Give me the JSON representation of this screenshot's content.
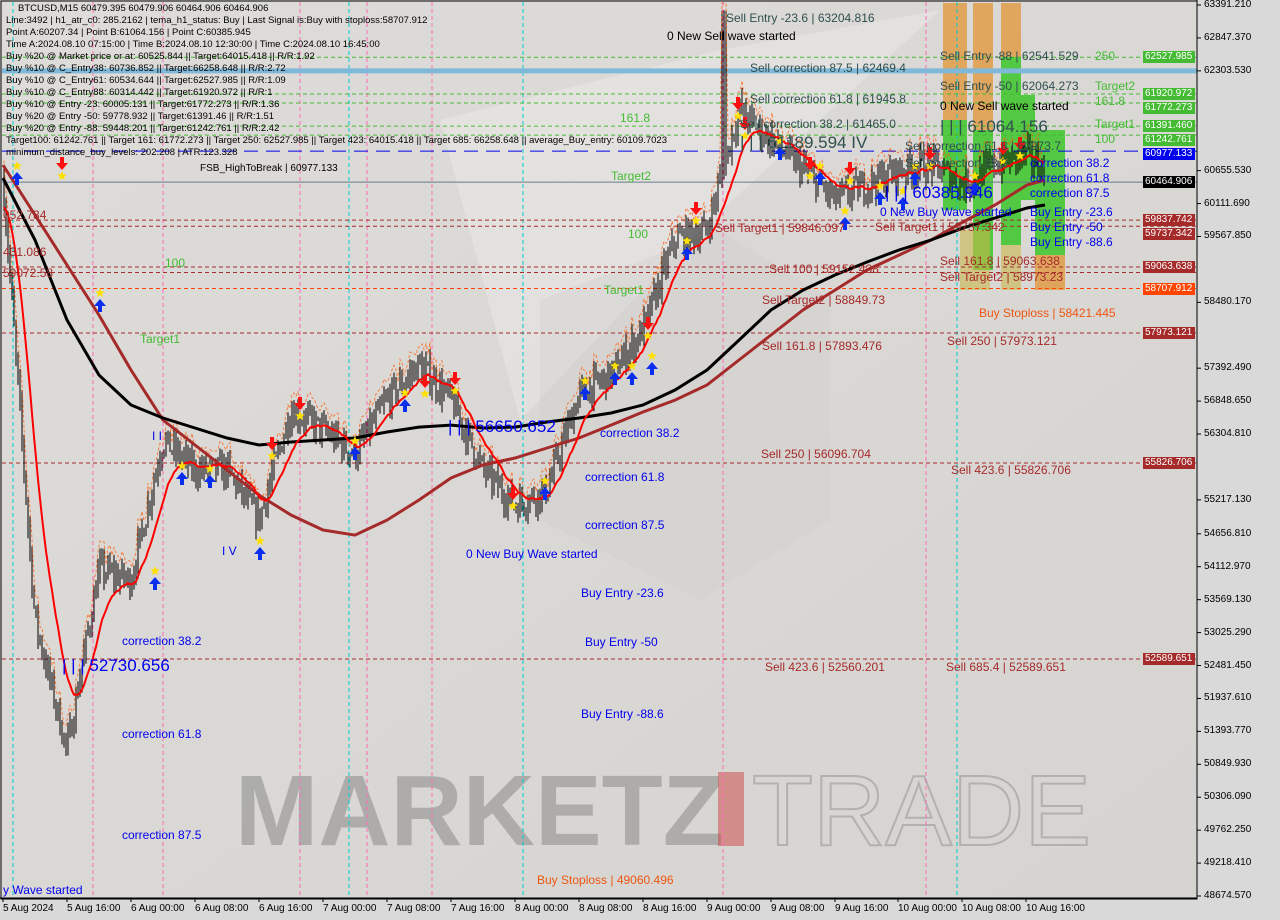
{
  "header": {
    "lines": [
      "BTCUSD,M15  60479.395 60479.906 60464.906 60464.906",
      "Line:3492 | h1_atr_c0: 285.2162 | tema_h1_status: Buy | Last Signal is:Buy with stoploss:58707.912",
      "Point A:60207.34 | Point B:61064.156 | Point C:60385.945",
      "Time A:2024.08.10 07:15:00 | Time B:2024.08.10 12:30:00 | Time C:2024.08.10 16:45:00",
      "Buy %20 @ Market price or at: 60525.844 || Target:64015.418 || R/R:1.92",
      "Buy %10 @ C_Entry38: 60736.852 || Target:66258.648 || R/R:2.72",
      "Buy %10 @ C_Entry61: 60534.644 || Target:62527.985 || R/R:1.09",
      "Buy %10 @ C_Entry88: 60314.442 || Target:61920.972 || R/R:1",
      "Buy %10 @ Entry -23: 60005.131 || Target:61772.273 || R/R:1.36",
      "Buy %20 @ Entry -50: 59778.932 || Target:61391.46 || R/R:1.51",
      "Buy %20 @ Entry -88: 59448.201 || Target:61242.761 || R/R:2.42",
      "Target100: 61242.761 || Target 161: 61772.273 || Target 250: 62527.985 || Target 423: 64015.418 || Target 685: 66258.648 || average_Buy_entry: 60109.7023",
      "minimum_distance_buy_levels: 202.208 | ATR:123.328"
    ],
    "overlay_label": "FSB_HighToBreak | 60977.133"
  },
  "watermark": {
    "left": "MARKETZ",
    "right": "TRADE"
  },
  "chart_data": {
    "type": "candlestick",
    "symbol": "BTCUSD",
    "timeframe": "M15",
    "last_ohlc": {
      "open": 60479.395,
      "high": 60479.906,
      "low": 60464.906,
      "close": 60464.906
    },
    "ylim": [
      48674.57,
      63391.21
    ],
    "y_ticks": [
      "63391.210",
      "62847.370",
      "62303.530",
      "60655.530",
      "60111.690",
      "59567.850",
      "58480.170",
      "57392.490",
      "56848.650",
      "56304.810",
      "55217.130",
      "54656.810",
      "54112.970",
      "53569.130",
      "53025.290",
      "52481.450",
      "51937.610",
      "51393.770",
      "50849.930",
      "50306.090",
      "49762.250",
      "49218.410",
      "48674.570"
    ],
    "x_ticks": [
      "5 Aug 2024",
      "5 Aug 16:00",
      "6 Aug 00:00",
      "6 Aug 08:00",
      "6 Aug 16:00",
      "7 Aug 00:00",
      "7 Aug 08:00",
      "7 Aug 16:00",
      "8 Aug 00:00",
      "8 Aug 08:00",
      "8 Aug 16:00",
      "9 Aug 00:00",
      "9 Aug 08:00",
      "9 Aug 16:00",
      "10 Aug 00:00",
      "10 Aug 08:00",
      "10 Aug 16:00"
    ],
    "close_approx": [
      60500,
      53230,
      51080,
      54060,
      53890,
      56200,
      55710,
      55710,
      54880,
      56700,
      56370,
      55960,
      56870,
      57450,
      56870,
      55710,
      55130,
      55380,
      56950,
      57280,
      58020,
      59510,
      59680,
      61660,
      61160,
      60670,
      60170,
      60420,
      60670,
      60750,
      60420,
      60750,
      60910,
      60464.906
    ],
    "ma_black": [
      60534,
      59510,
      58188,
      57279,
      56784,
      56569,
      56404,
      56239,
      56123,
      56173,
      56206,
      56239,
      56338,
      56420,
      56453,
      56404,
      56420,
      56503,
      56569,
      56652,
      56784,
      57032,
      57362,
      57857,
      58353,
      58683,
      58931,
      59146,
      59344,
      59510,
      59707,
      59873,
      60038,
      60087
    ],
    "ma_brown": [
      60748,
      59922,
      59096,
      58270,
      57362,
      56536,
      56123,
      55710,
      55297,
      54967,
      54719,
      54636,
      54884,
      55215,
      55579,
      55793,
      55909,
      56074,
      56239,
      56453,
      56669,
      56866,
      57114,
      57527,
      57940,
      58353,
      58683,
      59014,
      59261,
      59510,
      59807,
      60087,
      60418,
      60500
    ],
    "spike_high": 63300,
    "levels": [
      {
        "price": 62527.985,
        "label": "62527.985",
        "color": "#44bb33",
        "style": "dash"
      },
      {
        "price": 62303.53,
        "label": "",
        "color": "#7fb8d8",
        "style": "thick"
      },
      {
        "price": 61920.972,
        "label": "61920.972",
        "color": "#44bb33",
        "style": "dash"
      },
      {
        "price": 61772.273,
        "label": "61772.273",
        "color": "#44bb33",
        "style": "dash"
      },
      {
        "price": 61391.46,
        "label": "61391.460",
        "color": "#44bb33",
        "style": "dash"
      },
      {
        "price": 61242.761,
        "label": "61242.761",
        "color": "#44bb33",
        "style": "dash"
      },
      {
        "price": 60977.133,
        "label": "60977.133",
        "color": "#0000ee",
        "style": "longdash"
      },
      {
        "price": 60464.906,
        "label": "60464.906",
        "color": "#000000",
        "style": "solid"
      },
      {
        "price": 59837.742,
        "label": "59837.742",
        "color": "#a52a2a",
        "style": "dash"
      },
      {
        "price": 59737.342,
        "label": "59737.342",
        "color": "#a52a2a",
        "style": "dash"
      },
      {
        "price": 59063.638,
        "label": "59063.638",
        "color": "#a52a2a",
        "style": "dash"
      },
      {
        "price": 58973.23,
        "label": "",
        "color": "#a52a2a",
        "style": "dash"
      },
      {
        "price": 58707.912,
        "label": "58707.912",
        "color": "#ff4500",
        "style": "dash"
      },
      {
        "price": 57973.121,
        "label": "57973.121",
        "color": "#a52a2a",
        "style": "dash"
      },
      {
        "price": 55826.706,
        "label": "55826.706",
        "color": "#a52a2a",
        "style": "dash"
      },
      {
        "price": 52589.651,
        "label": "52589.651",
        "color": "#a52a2a",
        "style": "dash"
      }
    ],
    "annotations": [
      {
        "text": "0 New Sell wave started",
        "color": "#000000"
      },
      {
        "text": "Sell Entry -23.6 | 63204.816",
        "color": "#2f4f4f"
      },
      {
        "text": "Sell correction 87.5 | 62469.4",
        "color": "#2f4f4f"
      },
      {
        "text": "Sell Entry -88 | 62541.529",
        "color": "#2f4f4f"
      },
      {
        "text": "250",
        "color": "#44bb33"
      },
      {
        "text": "Sell correction 61.8 | 61945.8",
        "color": "#2f4f4f"
      },
      {
        "text": "Sell Entry -50 | 62064.273",
        "color": "#2f4f4f"
      },
      {
        "text": "Target2",
        "color": "#44bb33"
      },
      {
        "text": "161.8",
        "color": "#44bb33"
      },
      {
        "text": "0 New Sell wave started",
        "color": "#000000"
      },
      {
        "text": "Sell correction 38.2 | 61465.0",
        "color": "#2f4f4f"
      },
      {
        "text": "| | | 61189.594 IV",
        "color": "#2f4f4f",
        "big": true
      },
      {
        "text": "| | | 61064.156",
        "color": "#2f4f4f",
        "big": true
      },
      {
        "text": "Target1",
        "color": "#44bb33"
      },
      {
        "text": "100",
        "color": "#44bb33"
      },
      {
        "text": "Sell correction 61.8 | 60973.7",
        "color": "#2f4f4f"
      },
      {
        "text": "Sell correction 38.2",
        "color": "#2f4f4f"
      },
      {
        "text": "correction 38.2",
        "color": "#0000ee"
      },
      {
        "text": "correction 61.8",
        "color": "#0000ee"
      },
      {
        "text": "correction 87.5",
        "color": "#0000ee"
      },
      {
        "text": "| | | 60385.946",
        "color": "#0000ee",
        "big": true
      },
      {
        "text": "0 New Buy Wave started",
        "color": "#0000ee"
      },
      {
        "text": "Buy Entry -23.6",
        "color": "#0000ee"
      },
      {
        "text": "Buy Entry -50",
        "color": "#0000ee"
      },
      {
        "text": "Buy Entry -88.6",
        "color": "#0000ee"
      },
      {
        "text": "Sell Target1 | 59846.097",
        "color": "#a52a2a"
      },
      {
        "text": "Sell Target1 | 59737.342",
        "color": "#a52a2a"
      },
      {
        "text": "Sell 100 | 59152.438",
        "color": "#a52a2a"
      },
      {
        "text": "Sell 161.8 | 59063.638",
        "color": "#a52a2a"
      },
      {
        "text": "Sell Target2 | 58973.23",
        "color": "#a52a2a"
      },
      {
        "text": "Sell Target2 | 58849.73",
        "color": "#a52a2a"
      },
      {
        "text": "Buy Stoploss | 58421.445",
        "color": "#ee5511"
      },
      {
        "text": "Sell 161.8 | 57893.476",
        "color": "#a52a2a"
      },
      {
        "text": "Sell 250 | 57973.121",
        "color": "#a52a2a"
      },
      {
        "text": "| | | 56650.652",
        "color": "#0000ee",
        "big": true
      },
      {
        "text": "correction 38.2",
        "color": "#0000ee"
      },
      {
        "text": "Sell 250 | 56096.704",
        "color": "#a52a2a"
      },
      {
        "text": "Sell 423.6 | 55826.706",
        "color": "#a52a2a"
      },
      {
        "text": "correction 61.8",
        "color": "#0000ee"
      },
      {
        "text": "correction 87.5",
        "color": "#0000ee"
      },
      {
        "text": "0 New Buy Wave started",
        "color": "#0000ee"
      },
      {
        "text": "Buy Entry -23.6",
        "color": "#0000ee"
      },
      {
        "text": "Buy Entry -50",
        "color": "#0000ee"
      },
      {
        "text": "Buy Entry -88.6",
        "color": "#0000ee"
      },
      {
        "text": "Sell 423.6 | 52560.201",
        "color": "#a52a2a"
      },
      {
        "text": "Sell 685.4 | 52589.651",
        "color": "#a52a2a"
      },
      {
        "text": "Buy Stoploss | 49060.496",
        "color": "#ee5511"
      },
      {
        "text": "| | | 52730.656",
        "color": "#0000ee",
        "big": true
      },
      {
        "text": "correction 38.2",
        "color": "#0000ee"
      },
      {
        "text": "correction 61.8",
        "color": "#0000ee"
      },
      {
        "text": "correction 87.5",
        "color": "#0000ee"
      },
      {
        "text": "y Wave started",
        "color": "#0000ee"
      },
      {
        "text": "161.8",
        "color": "#44bb33"
      },
      {
        "text": "100",
        "color": "#44bb33"
      },
      {
        "text": "Target1",
        "color": "#44bb33"
      },
      {
        "text": "Target2",
        "color": "#44bb33"
      },
      {
        "text": "100",
        "color": "#44bb33"
      },
      {
        "text": "Target1",
        "color": "#44bb33"
      },
      {
        "text": "052.734",
        "color": "#a52a2a"
      },
      {
        "text": "431.086",
        "color": "#a52a2a"
      },
      {
        "text": "59072.58",
        "color": "#a52a2a"
      },
      {
        "text": "I V",
        "color": "#0000ee"
      },
      {
        "text": "I I",
        "color": "#0000ee"
      }
    ]
  },
  "colors": {
    "bullish_zone": "#44c633",
    "bearish_zone": "#e0a050",
    "ema": "#ff0000",
    "ma_slow": "#000000",
    "ma_long": "#a52a2a"
  }
}
